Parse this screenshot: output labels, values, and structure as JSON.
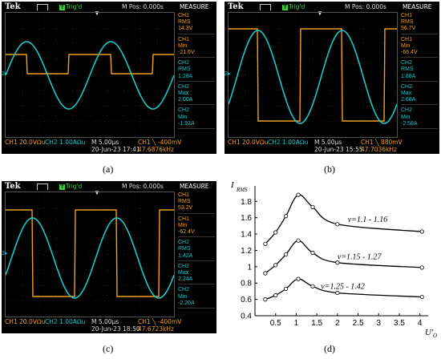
{
  "scopes": [
    {
      "id": "a",
      "brand": "Tek",
      "trig": "Trig'd",
      "mpos": "M Pos: 0.000s",
      "measure": "MEASURE",
      "measurements": [
        {
          "ch": "CH1",
          "label": "RMS",
          "value": "14.3V"
        },
        {
          "ch": "CH1",
          "label": "Min",
          "value": "-21.6V"
        },
        {
          "ch": "CH2",
          "label": "RMS",
          "value": "1.28A"
        },
        {
          "ch": "CH2",
          "label": "Max",
          "value": "2.00A"
        },
        {
          "ch": "CH2",
          "label": "Min",
          "value": "-1.92A"
        }
      ],
      "ch1_scale": "CH1  20.0VΩu",
      "ch2_scale": "CH2   1.00AΩu",
      "timebase": "M 5.00µs",
      "datetime": "20-Jun-23 17:41",
      "trig_level": "CH1 ╲ -400mV",
      "freq": "47.6876kHz",
      "caption": "(a)"
    },
    {
      "id": "b",
      "brand": "Tek",
      "trig": "Trig'd",
      "mpos": "M Pos: 0.000s",
      "measure": "MEASURE",
      "measurements": [
        {
          "ch": "CH1",
          "label": "RMS",
          "value": "56.7V"
        },
        {
          "ch": "CH1",
          "label": "Min",
          "value": "-66.4V"
        },
        {
          "ch": "CH2",
          "label": "RMS",
          "value": "1.88A"
        },
        {
          "ch": "CH2",
          "label": "Max",
          "value": "2.68A"
        },
        {
          "ch": "CH2",
          "label": "Min",
          "value": "-2.58A"
        }
      ],
      "ch1_scale": "CH1  20.0VΩu",
      "ch2_scale": "CH2   1.00AΩu",
      "timebase": "M 5.00µs",
      "datetime": "20-Jun-23 15:55",
      "trig_level": "CH1 ╲ 880mV",
      "freq": "47.7036kHz",
      "caption": "(b)"
    },
    {
      "id": "c",
      "brand": "Tek",
      "trig": "Trig'd",
      "mpos": "M Pos: 0.000s",
      "measure": "MEASURE",
      "measurements": [
        {
          "ch": "CH1",
          "label": "RMS",
          "value": "53.2V"
        },
        {
          "ch": "CH1",
          "label": "Min",
          "value": "-62.4V"
        },
        {
          "ch": "CH2",
          "label": "RMS",
          "value": "1.42A"
        },
        {
          "ch": "CH2",
          "label": "Max",
          "value": "2.24A"
        },
        {
          "ch": "CH2",
          "label": "Min",
          "value": "-2.20A"
        }
      ],
      "ch1_scale": "CH1  20.0VΩu",
      "ch2_scale": "CH2   1.00AΩu",
      "timebase": "M 5.00µs",
      "datetime": "20-Jun-23 18:50",
      "trig_level": "CH1 ╲ -400mV",
      "freq": "47.6723kHz",
      "caption": "(c)"
    }
  ],
  "chart_data": {
    "type": "line",
    "ylabel_main": "I",
    "ylabel_sub": "RMS",
    "xlabel_main": "U'",
    "xlabel_sub": "O",
    "xlim": [
      0,
      4.2
    ],
    "ylim": [
      0.4,
      1.95
    ],
    "xticks": [
      "0.5",
      "1",
      "1.5",
      "2",
      "2.5",
      "3",
      "3.5",
      "4"
    ],
    "yticks": [
      "0.4",
      "0.6",
      "0.8",
      "1",
      "1.2",
      "1.4",
      "1.6",
      "1.8"
    ],
    "xtick_values": [
      0.5,
      1,
      1.5,
      2,
      2.5,
      3,
      3.5,
      4
    ],
    "ytick_values": [
      0.4,
      0.6,
      0.8,
      1.0,
      1.2,
      1.4,
      1.6,
      1.8
    ],
    "series": [
      {
        "name": "ν=1.1 - 1.16",
        "x": [
          0.25,
          0.5,
          0.75,
          1.05,
          1.4,
          2.0,
          4.05
        ],
        "y": [
          1.28,
          1.42,
          1.62,
          1.88,
          1.73,
          1.52,
          1.43
        ]
      },
      {
        "name": "ν=1.15 - 1.27",
        "x": [
          0.25,
          0.5,
          0.75,
          1.05,
          1.4,
          2.0,
          4.05
        ],
        "y": [
          0.92,
          1.02,
          1.15,
          1.32,
          1.17,
          1.05,
          0.99
        ]
      },
      {
        "name": "ν=1.25 - 1.42",
        "x": [
          0.25,
          0.5,
          0.75,
          1.05,
          1.4,
          2.0,
          4.05
        ],
        "y": [
          0.6,
          0.65,
          0.73,
          0.85,
          0.76,
          0.68,
          0.63
        ]
      }
    ],
    "caption": "(d)"
  }
}
